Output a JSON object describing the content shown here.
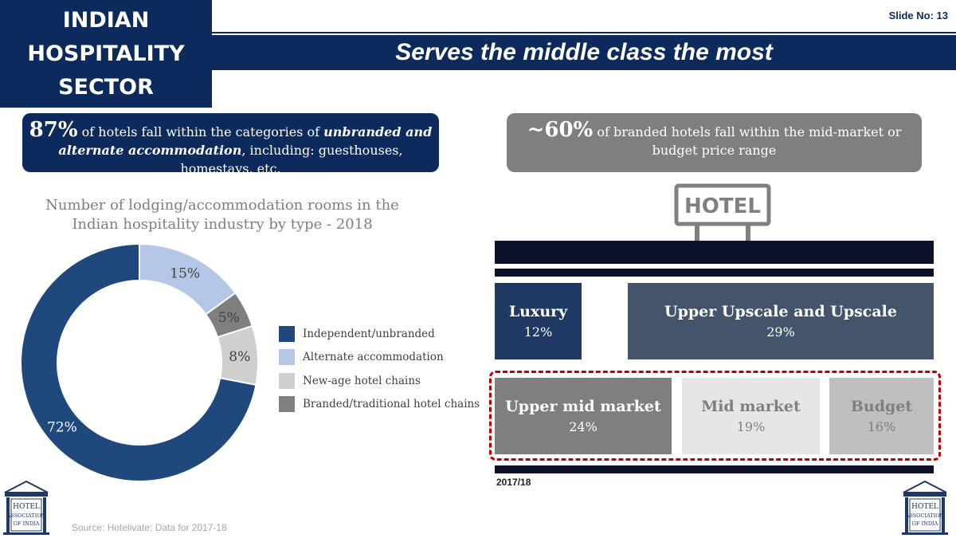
{
  "header": {
    "title_lines": [
      "INDIAN",
      "HOSPITALITY",
      "SECTOR"
    ],
    "slide_no": "Slide No: 13",
    "banner": "Serves the middle class the most"
  },
  "callout_left": {
    "big": "87%",
    "text_a": " of hotels fall within the categories of ",
    "em": "unbranded and alternate accommodation",
    "text_b": ", including: guesthouses, homestays, etc."
  },
  "callout_right": {
    "big": "~60%",
    "text": " of branded hotels fall within the mid-market or budget price range"
  },
  "colors": {
    "navy": "#0d2a5c",
    "independent": "#1f497d",
    "alternate": "#b4c7e7",
    "new_age": "#d0cece",
    "branded": "#7f7f7f"
  },
  "chart_data": [
    {
      "type": "pie",
      "title": "Number of lodging/accommodation rooms in the Indian hospitality industry by type - 2018",
      "series": [
        {
          "name": "Independent/unbranded",
          "value": 72,
          "label": "72%",
          "color": "#1f497d"
        },
        {
          "name": "Alternate accommodation",
          "value": 15,
          "label": "15%",
          "color": "#b4c7e7"
        },
        {
          "name": "New-age hotel chains",
          "value": 8,
          "label": "8%",
          "color": "#d0cece"
        },
        {
          "name": "Branded/traditional hotel chains",
          "value": 5,
          "label": "5%",
          "color": "#7f7f7f"
        }
      ],
      "order_clockwise_from_top": [
        "Alternate accommodation",
        "Branded/traditional hotel chains",
        "New-age hotel chains",
        "Independent/unbranded"
      ],
      "legend_position": "right",
      "legend_order": [
        "Independent/unbranded",
        "Alternate accommodation",
        "New-age hotel chains",
        "Branded/traditional hotel chains"
      ]
    },
    {
      "type": "table",
      "title": "",
      "period": "2017/18",
      "categories": [
        {
          "name": "Luxury",
          "value": 12,
          "label": "12%",
          "color": "#1f3864"
        },
        {
          "name": "Upper Upscale and Upscale",
          "value": 29,
          "label": "29%",
          "color": "#44546a"
        },
        {
          "name": "Upper mid market",
          "value": 24,
          "label": "24%",
          "color": "#7f7f7f"
        },
        {
          "name": "Mid market",
          "value": 19,
          "label": "19%",
          "color": "#e7e6e6"
        },
        {
          "name": "Budget",
          "value": 16,
          "label": "16%",
          "color": "#bfbfbf"
        }
      ]
    }
  ],
  "hotel_sign": "HOTEL",
  "source": "Source: Hotelivate; Data for 2017-18",
  "logo": {
    "lines": [
      "HOTEL",
      "ASSOCIATION",
      "OF INDIA"
    ]
  }
}
